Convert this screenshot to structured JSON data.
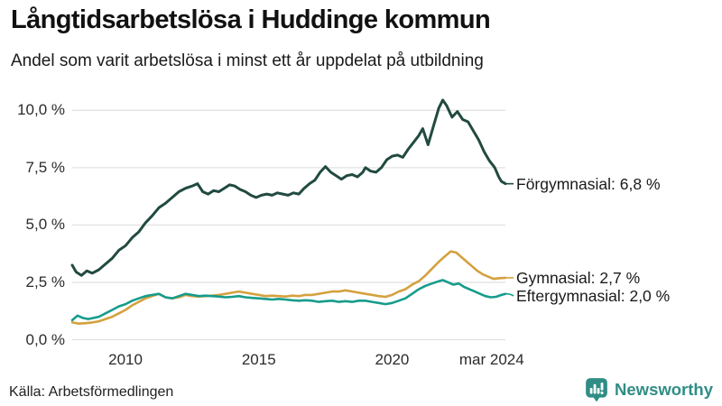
{
  "header": {
    "title": "Långtidsarbetslösa i Huddinge kommun",
    "subtitle": "Andel som varit arbetslösa i minst ett år uppdelat på utbildning"
  },
  "footer": {
    "source": "Källa: Arbetsförmedlingen",
    "brand": "Newsworthy",
    "brand_color": "#2f8d85"
  },
  "colors": {
    "grid": "#e2e2e2",
    "tick_text": "#2b2b2b",
    "label_text": "#1a1a1a"
  },
  "chart_data": {
    "type": "line",
    "title": "Långtidsarbetslösa i Huddinge kommun",
    "subtitle": "Andel som varit arbetslösa i minst ett år uppdelat på utbildning",
    "unit": "%",
    "grid": true,
    "x_axis": {
      "range": [
        2008,
        2024.25
      ],
      "ticks": [
        {
          "label": "2010",
          "value": 2010
        },
        {
          "label": "2015",
          "value": 2015
        },
        {
          "label": "2020",
          "value": 2020
        },
        {
          "label": "mar 2024",
          "value": 2024.21
        }
      ]
    },
    "y_axis": {
      "range": [
        0,
        10.5
      ],
      "ticks": [
        {
          "label": "0,0 %",
          "value": 0
        },
        {
          "label": "2,5 %",
          "value": 2.5
        },
        {
          "label": "5,0 %",
          "value": 5
        },
        {
          "label": "7,5 %",
          "value": 7.5
        },
        {
          "label": "10,0 %",
          "value": 10
        }
      ]
    },
    "series": [
      {
        "name": "Förgymnasial",
        "end_label": "Förgymnasial: 6,8 %",
        "last_value": 6.8,
        "color": "#214a40",
        "stroke_width": 3,
        "points": [
          [
            2008.0,
            3.25
          ],
          [
            2008.15,
            2.95
          ],
          [
            2008.35,
            2.8
          ],
          [
            2008.55,
            3.0
          ],
          [
            2008.75,
            2.9
          ],
          [
            2009.0,
            3.05
          ],
          [
            2009.25,
            3.3
          ],
          [
            2009.5,
            3.55
          ],
          [
            2009.75,
            3.9
          ],
          [
            2010.0,
            4.1
          ],
          [
            2010.25,
            4.45
          ],
          [
            2010.5,
            4.7
          ],
          [
            2010.75,
            5.1
          ],
          [
            2011.0,
            5.4
          ],
          [
            2011.25,
            5.75
          ],
          [
            2011.5,
            5.95
          ],
          [
            2011.75,
            6.2
          ],
          [
            2012.0,
            6.45
          ],
          [
            2012.25,
            6.6
          ],
          [
            2012.5,
            6.7
          ],
          [
            2012.7,
            6.8
          ],
          [
            2012.9,
            6.45
          ],
          [
            2013.1,
            6.35
          ],
          [
            2013.3,
            6.5
          ],
          [
            2013.5,
            6.45
          ],
          [
            2013.7,
            6.6
          ],
          [
            2013.9,
            6.75
          ],
          [
            2014.1,
            6.7
          ],
          [
            2014.3,
            6.55
          ],
          [
            2014.5,
            6.45
          ],
          [
            2014.7,
            6.3
          ],
          [
            2014.9,
            6.2
          ],
          [
            2015.1,
            6.3
          ],
          [
            2015.3,
            6.35
          ],
          [
            2015.5,
            6.3
          ],
          [
            2015.7,
            6.4
          ],
          [
            2015.9,
            6.35
          ],
          [
            2016.1,
            6.3
          ],
          [
            2016.3,
            6.4
          ],
          [
            2016.5,
            6.35
          ],
          [
            2016.7,
            6.6
          ],
          [
            2016.9,
            6.8
          ],
          [
            2017.1,
            6.95
          ],
          [
            2017.3,
            7.3
          ],
          [
            2017.5,
            7.55
          ],
          [
            2017.7,
            7.3
          ],
          [
            2017.9,
            7.15
          ],
          [
            2018.1,
            7.0
          ],
          [
            2018.3,
            7.15
          ],
          [
            2018.5,
            7.2
          ],
          [
            2018.7,
            7.1
          ],
          [
            2018.9,
            7.3
          ],
          [
            2019.0,
            7.5
          ],
          [
            2019.2,
            7.35
          ],
          [
            2019.4,
            7.3
          ],
          [
            2019.6,
            7.5
          ],
          [
            2019.8,
            7.85
          ],
          [
            2020.0,
            8.0
          ],
          [
            2020.2,
            8.05
          ],
          [
            2020.4,
            7.95
          ],
          [
            2020.6,
            8.3
          ],
          [
            2020.8,
            8.6
          ],
          [
            2021.0,
            8.9
          ],
          [
            2021.15,
            9.2
          ],
          [
            2021.35,
            8.5
          ],
          [
            2021.55,
            9.3
          ],
          [
            2021.75,
            10.1
          ],
          [
            2021.9,
            10.45
          ],
          [
            2022.05,
            10.2
          ],
          [
            2022.25,
            9.7
          ],
          [
            2022.45,
            9.95
          ],
          [
            2022.65,
            9.6
          ],
          [
            2022.85,
            9.5
          ],
          [
            2023.05,
            9.1
          ],
          [
            2023.25,
            8.7
          ],
          [
            2023.45,
            8.2
          ],
          [
            2023.65,
            7.8
          ],
          [
            2023.85,
            7.5
          ],
          [
            2024.0,
            7.1
          ],
          [
            2024.1,
            6.9
          ],
          [
            2024.25,
            6.8
          ]
        ]
      },
      {
        "name": "Gymnasial",
        "end_label": "Gymnasial: 2,7 %",
        "last_value": 2.7,
        "color": "#d4a13e",
        "stroke_width": 2.6,
        "points": [
          [
            2008.0,
            0.75
          ],
          [
            2008.25,
            0.7
          ],
          [
            2008.5,
            0.72
          ],
          [
            2008.75,
            0.75
          ],
          [
            2009.0,
            0.8
          ],
          [
            2009.25,
            0.9
          ],
          [
            2009.5,
            1.0
          ],
          [
            2009.75,
            1.15
          ],
          [
            2010.0,
            1.3
          ],
          [
            2010.25,
            1.5
          ],
          [
            2010.5,
            1.65
          ],
          [
            2010.75,
            1.8
          ],
          [
            2011.0,
            1.9
          ],
          [
            2011.25,
            2.0
          ],
          [
            2011.5,
            1.85
          ],
          [
            2011.75,
            1.8
          ],
          [
            2012.0,
            1.85
          ],
          [
            2012.25,
            1.95
          ],
          [
            2012.5,
            1.9
          ],
          [
            2012.75,
            1.88
          ],
          [
            2013.0,
            1.9
          ],
          [
            2013.25,
            1.92
          ],
          [
            2013.5,
            1.95
          ],
          [
            2013.75,
            2.0
          ],
          [
            2014.0,
            2.05
          ],
          [
            2014.25,
            2.1
          ],
          [
            2014.5,
            2.05
          ],
          [
            2014.75,
            2.0
          ],
          [
            2015.0,
            1.95
          ],
          [
            2015.25,
            1.9
          ],
          [
            2015.5,
            1.92
          ],
          [
            2015.75,
            1.9
          ],
          [
            2016.0,
            1.88
          ],
          [
            2016.25,
            1.92
          ],
          [
            2016.5,
            1.9
          ],
          [
            2016.75,
            1.95
          ],
          [
            2017.0,
            1.95
          ],
          [
            2017.25,
            2.0
          ],
          [
            2017.5,
            2.05
          ],
          [
            2017.75,
            2.1
          ],
          [
            2018.0,
            2.1
          ],
          [
            2018.25,
            2.15
          ],
          [
            2018.5,
            2.1
          ],
          [
            2018.75,
            2.05
          ],
          [
            2019.0,
            2.0
          ],
          [
            2019.25,
            1.95
          ],
          [
            2019.5,
            1.9
          ],
          [
            2019.75,
            1.87
          ],
          [
            2020.0,
            1.95
          ],
          [
            2020.25,
            2.1
          ],
          [
            2020.5,
            2.2
          ],
          [
            2020.75,
            2.4
          ],
          [
            2021.0,
            2.55
          ],
          [
            2021.25,
            2.8
          ],
          [
            2021.5,
            3.1
          ],
          [
            2021.75,
            3.4
          ],
          [
            2022.0,
            3.65
          ],
          [
            2022.2,
            3.85
          ],
          [
            2022.4,
            3.8
          ],
          [
            2022.6,
            3.6
          ],
          [
            2022.8,
            3.4
          ],
          [
            2023.0,
            3.2
          ],
          [
            2023.2,
            3.0
          ],
          [
            2023.4,
            2.85
          ],
          [
            2023.6,
            2.75
          ],
          [
            2023.8,
            2.65
          ],
          [
            2024.0,
            2.68
          ],
          [
            2024.25,
            2.7
          ]
        ]
      },
      {
        "name": "Eftergymnasial",
        "end_label": "Eftergymnasial: 2,0 %",
        "last_value": 2.0,
        "color": "#169c8c",
        "stroke_width": 2.6,
        "points": [
          [
            2008.0,
            0.85
          ],
          [
            2008.2,
            1.05
          ],
          [
            2008.4,
            0.95
          ],
          [
            2008.6,
            0.9
          ],
          [
            2008.8,
            0.95
          ],
          [
            2009.0,
            1.0
          ],
          [
            2009.25,
            1.15
          ],
          [
            2009.5,
            1.3
          ],
          [
            2009.75,
            1.45
          ],
          [
            2010.0,
            1.55
          ],
          [
            2010.25,
            1.7
          ],
          [
            2010.5,
            1.8
          ],
          [
            2010.75,
            1.9
          ],
          [
            2011.0,
            1.95
          ],
          [
            2011.25,
            2.0
          ],
          [
            2011.5,
            1.85
          ],
          [
            2011.75,
            1.8
          ],
          [
            2012.0,
            1.9
          ],
          [
            2012.25,
            2.0
          ],
          [
            2012.5,
            1.95
          ],
          [
            2012.75,
            1.9
          ],
          [
            2013.0,
            1.92
          ],
          [
            2013.25,
            1.9
          ],
          [
            2013.5,
            1.88
          ],
          [
            2013.75,
            1.85
          ],
          [
            2014.0,
            1.87
          ],
          [
            2014.25,
            1.9
          ],
          [
            2014.5,
            1.85
          ],
          [
            2014.75,
            1.82
          ],
          [
            2015.0,
            1.8
          ],
          [
            2015.25,
            1.78
          ],
          [
            2015.5,
            1.75
          ],
          [
            2015.75,
            1.78
          ],
          [
            2016.0,
            1.75
          ],
          [
            2016.25,
            1.72
          ],
          [
            2016.5,
            1.7
          ],
          [
            2016.75,
            1.72
          ],
          [
            2017.0,
            1.7
          ],
          [
            2017.25,
            1.65
          ],
          [
            2017.5,
            1.68
          ],
          [
            2017.75,
            1.7
          ],
          [
            2018.0,
            1.65
          ],
          [
            2018.25,
            1.68
          ],
          [
            2018.5,
            1.65
          ],
          [
            2018.75,
            1.7
          ],
          [
            2019.0,
            1.7
          ],
          [
            2019.25,
            1.65
          ],
          [
            2019.5,
            1.6
          ],
          [
            2019.75,
            1.55
          ],
          [
            2020.0,
            1.6
          ],
          [
            2020.25,
            1.7
          ],
          [
            2020.5,
            1.8
          ],
          [
            2020.75,
            2.0
          ],
          [
            2021.0,
            2.2
          ],
          [
            2021.25,
            2.35
          ],
          [
            2021.5,
            2.45
          ],
          [
            2021.75,
            2.55
          ],
          [
            2021.9,
            2.6
          ],
          [
            2022.1,
            2.5
          ],
          [
            2022.3,
            2.4
          ],
          [
            2022.5,
            2.45
          ],
          [
            2022.7,
            2.3
          ],
          [
            2022.9,
            2.2
          ],
          [
            2023.1,
            2.1
          ],
          [
            2023.3,
            2.0
          ],
          [
            2023.5,
            1.9
          ],
          [
            2023.7,
            1.85
          ],
          [
            2023.9,
            1.87
          ],
          [
            2024.1,
            1.95
          ],
          [
            2024.25,
            2.0
          ]
        ]
      }
    ]
  }
}
